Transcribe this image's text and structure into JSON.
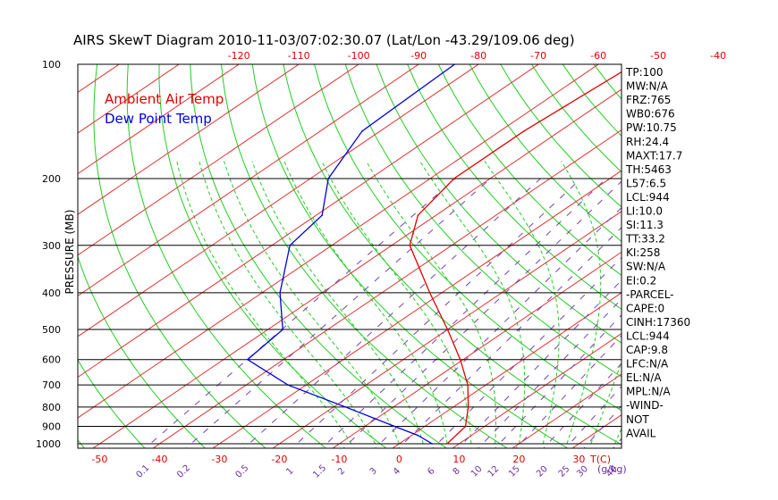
{
  "title": "AIRS SkewT Diagram 2010-11-03/07:02:30.07 (Lat/Lon -43.29/109.06 deg)",
  "chart_data": {
    "type": "line",
    "ylabel": "PRESSURE (MB)",
    "pressure_axis": {
      "scale": "log",
      "range": [
        1000,
        100
      ],
      "ticks": [
        100,
        200,
        300,
        400,
        500,
        600,
        700,
        800,
        900,
        1000
      ]
    },
    "top_temp_ticks": [
      -120,
      -110,
      -100,
      -90,
      -80,
      -70,
      -60,
      -50,
      -40
    ],
    "bottom_temp_ticks": [
      -50,
      -40,
      -30,
      -20,
      -10,
      0,
      10,
      20,
      30
    ],
    "bottom_temp_unit": "T(C)",
    "mixing_ratio_labels": [
      "0.1",
      "0.2",
      "0.5",
      "1",
      "1.5",
      "2",
      "3",
      "4",
      "6",
      "8",
      "10",
      "12",
      "15",
      "20",
      "25",
      "30",
      "40"
    ],
    "mixing_ratio_unit": "(g/kg)",
    "legend": [
      {
        "label": "Ambient Air Temp",
        "color": "#e00000"
      },
      {
        "label": "Dew Point Temp",
        "color": "#0000e0"
      }
    ],
    "series": [
      {
        "name": "Ambient Air Temp",
        "color": "#e00000",
        "points": [
          {
            "p": 1000,
            "t": 8.0
          },
          {
            "p": 900,
            "t": 6.8
          },
          {
            "p": 800,
            "t": 2.5
          },
          {
            "p": 700,
            "t": -3.0
          },
          {
            "p": 600,
            "t": -10.5
          },
          {
            "p": 500,
            "t": -20.0
          },
          {
            "p": 400,
            "t": -32.0
          },
          {
            "p": 300,
            "t": -47.0
          },
          {
            "p": 250,
            "t": -53.0
          },
          {
            "p": 200,
            "t": -56.0
          },
          {
            "p": 150,
            "t": -56.0
          },
          {
            "p": 100,
            "t": -54.0
          }
        ]
      },
      {
        "name": "Dew Point Temp",
        "color": "#0000e0",
        "points": [
          {
            "p": 1000,
            "t": 5.5
          },
          {
            "p": 950,
            "t": 1.0
          },
          {
            "p": 900,
            "t": -5.0
          },
          {
            "p": 800,
            "t": -18.0
          },
          {
            "p": 700,
            "t": -33.0
          },
          {
            "p": 600,
            "t": -46.0
          },
          {
            "p": 500,
            "t": -47.5
          },
          {
            "p": 400,
            "t": -57.0
          },
          {
            "p": 300,
            "t": -67.0
          },
          {
            "p": 250,
            "t": -69.0
          },
          {
            "p": 200,
            "t": -77.0
          },
          {
            "p": 150,
            "t": -83.0
          },
          {
            "p": 100,
            "t": -84.0
          }
        ]
      }
    ]
  },
  "indices": [
    "TP:100",
    "MW:N/A",
    "FRZ:765",
    "WB0:676",
    "PW:10.75",
    "RH:24.4",
    "MAXT:17.7",
    "TH:5463",
    "L57:6.5",
    "LCL:944",
    "LI:10.0",
    "SI:11.3",
    "TT:33.2",
    "KI:258",
    "SW:N/A",
    "EI:0.2",
    "-PARCEL-",
    "CAPE:0",
    "CINH:17360",
    "LCL:944",
    "CAP:9.8",
    "LFC:N/A",
    "EL:N/A",
    "MPL:N/A",
    "-WIND-",
    "NOT",
    "AVAIL"
  ]
}
